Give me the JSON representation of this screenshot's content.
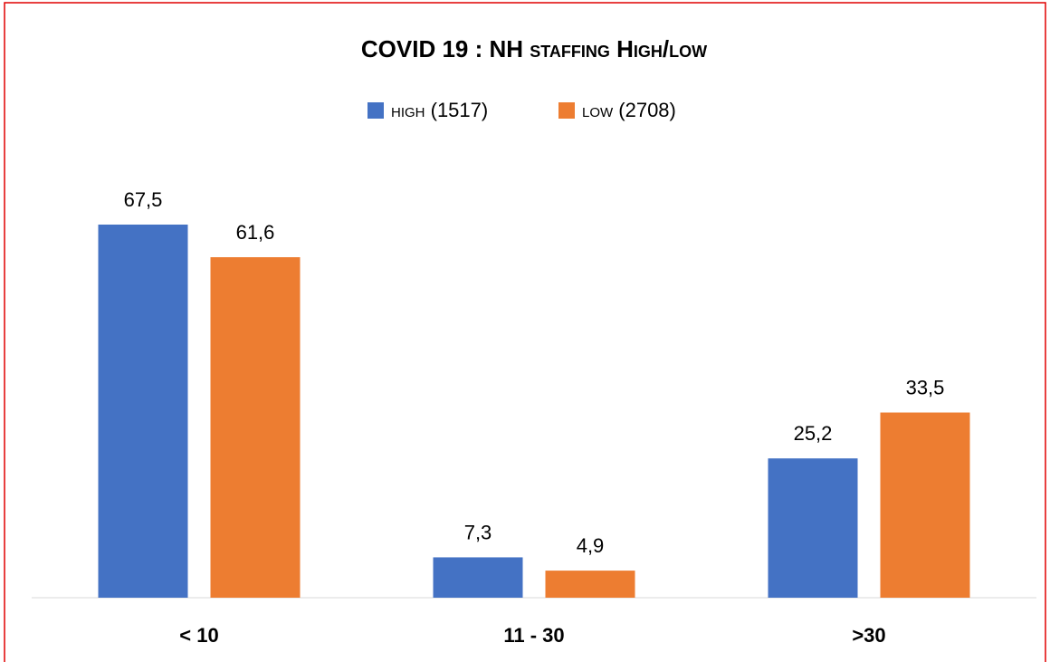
{
  "chart_data": {
    "type": "bar",
    "title": "COVID 19 : NH staffing High/low",
    "categories": [
      "< 10",
      "11 - 30",
      ">30"
    ],
    "series": [
      {
        "name": "high (1517)",
        "color": "#4472c4",
        "values": [
          67.5,
          7.3,
          25.2
        ],
        "value_labels": [
          "67,5",
          "7,3",
          "25,2"
        ]
      },
      {
        "name": "low (2708)",
        "color": "#ed7d31",
        "values": [
          61.6,
          4.9,
          33.5
        ],
        "value_labels": [
          "61,6",
          "4,9",
          "33,5"
        ]
      }
    ],
    "legend": "top"
  }
}
